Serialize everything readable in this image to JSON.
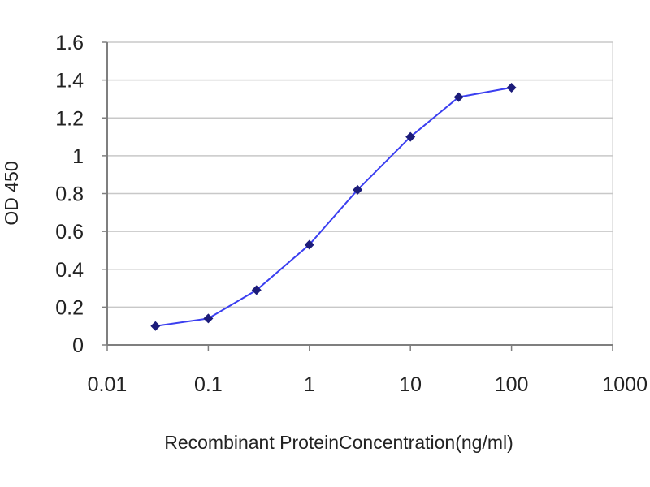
{
  "chart_data": {
    "type": "line",
    "xlabel": "Recombinant ProteinConcentration(ng/ml)",
    "ylabel": "OD 450",
    "x_scale": "log",
    "xlim": [
      0.01,
      1000
    ],
    "ylim": [
      0,
      1.6
    ],
    "x_ticks": [
      "0.01",
      "0.1",
      "1",
      "10",
      "100",
      "1000"
    ],
    "y_ticks": [
      "0",
      "0.2",
      "0.4",
      "0.6",
      "0.8",
      "1",
      "1.2",
      "1.4",
      "1.6"
    ],
    "grid": "horizontal",
    "legend": "none",
    "series": [
      {
        "x": [
          0.03,
          0.1,
          0.3,
          1,
          3,
          10,
          30,
          100
        ],
        "y": [
          0.1,
          0.14,
          0.29,
          0.53,
          0.82,
          1.1,
          1.31,
          1.36
        ]
      }
    ],
    "colors": {
      "line": "#3b3ff0",
      "marker": "#1c1c7a",
      "grid": "#c8c8c8",
      "plot_border": "#c8c8c8",
      "axis": "#7f7f7f"
    }
  }
}
